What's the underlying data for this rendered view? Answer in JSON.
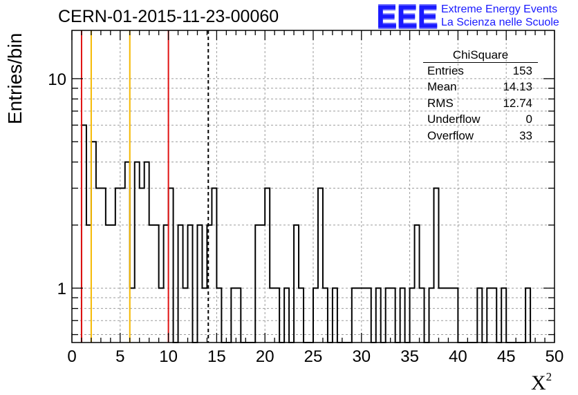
{
  "header": {
    "run_title": "CERN-01-2015-11-23-00060"
  },
  "logo": {
    "mark": "EEE",
    "line1": "Extreme Energy Events",
    "line2": "La Scienza nelle Scuole"
  },
  "stats_box": {
    "title": "ChiSquare",
    "rows": [
      {
        "label": "Entries",
        "value": "153"
      },
      {
        "label": "Mean",
        "value": "14.13"
      },
      {
        "label": "RMS",
        "value": "12.74"
      },
      {
        "label": "Underflow",
        "value": "0"
      },
      {
        "label": "Overflow",
        "value": "33"
      }
    ]
  },
  "axes": {
    "ylabel": "Entries/bin",
    "xlabel": "X",
    "xlabel_sup": "2"
  },
  "colors": {
    "histogram": "#000000",
    "grid": "#9a9a9a",
    "red_lines": "#e01010",
    "orange_lines": "#f5b800",
    "dashed_line": "#000000",
    "logo": "#1a1aff"
  },
  "chart_data": {
    "type": "bar",
    "title": "CERN-01-2015-11-23-00060",
    "xlabel": "X²",
    "ylabel": "Entries/bin",
    "xlim": [
      0,
      50
    ],
    "ylim": [
      0.55,
      17
    ],
    "y_scale": "log",
    "grid": true,
    "bin_width": 0.5,
    "x_ticks": [
      0,
      5,
      10,
      15,
      20,
      25,
      30,
      35,
      40,
      45,
      50
    ],
    "y_ticks": [
      1,
      10
    ],
    "bins_start": 1,
    "bin_counts": [
      6,
      2,
      5,
      3,
      3,
      2,
      2,
      3,
      3,
      4,
      1,
      4,
      3,
      4,
      2,
      2,
      1,
      2,
      3,
      0,
      2,
      1,
      2,
      0,
      2,
      1,
      2,
      3,
      1,
      0,
      0,
      1,
      1,
      0,
      0,
      0,
      2,
      2,
      3,
      1,
      1,
      0,
      1,
      0,
      2,
      1,
      0,
      0,
      1,
      3,
      1,
      0,
      1,
      0,
      0,
      0,
      1,
      1,
      1,
      1,
      0,
      1,
      0,
      1,
      1,
      0,
      1,
      0,
      1,
      2,
      1,
      0,
      1,
      3,
      1,
      1,
      1,
      1,
      0,
      0,
      0,
      0,
      1,
      0,
      1,
      1,
      0,
      1,
      0,
      0,
      0,
      0,
      1
    ],
    "vertical_lines": [
      {
        "x": 1,
        "color": "red"
      },
      {
        "x": 2,
        "color": "orange"
      },
      {
        "x": 6,
        "color": "orange"
      },
      {
        "x": 10,
        "color": "red"
      },
      {
        "x": 14.13,
        "color": "black",
        "style": "dashed"
      }
    ]
  }
}
